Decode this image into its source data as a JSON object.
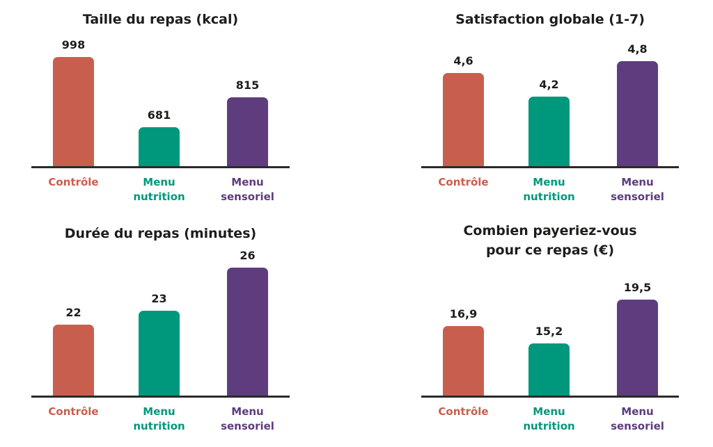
{
  "colors": {
    "controle": "#c85f4e",
    "nutrition": "#00987c",
    "sensoriel": "#5e3c7e"
  },
  "chart_data": [
    {
      "type": "bar",
      "title": "Taille du repas (kcal)",
      "categories": [
        "Contrôle",
        "Menu nutrition",
        "Menu sensoriel"
      ],
      "category_lines": [
        [
          "Contrôle"
        ],
        [
          "Menu",
          "nutrition"
        ],
        [
          "Menu",
          "sensoriel"
        ]
      ],
      "values": [
        998,
        681,
        815
      ],
      "value_labels": [
        "998",
        "681",
        "815"
      ],
      "xlabel": "",
      "ylabel": ""
    },
    {
      "type": "bar",
      "title": "Satisfaction globale (1-7)",
      "categories": [
        "Contrôle",
        "Menu nutrition",
        "Menu sensoriel"
      ],
      "category_lines": [
        [
          "Contrôle"
        ],
        [
          "Menu",
          "nutrition"
        ],
        [
          "Menu",
          "sensoriel"
        ]
      ],
      "values": [
        4.6,
        4.2,
        4.8
      ],
      "value_labels": [
        "4,6",
        "4,2",
        "4,8"
      ],
      "xlabel": "",
      "ylabel": ""
    },
    {
      "type": "bar",
      "title": "Durée du repas (minutes)",
      "categories": [
        "Contrôle",
        "Menu nutrition",
        "Menu sensoriel"
      ],
      "category_lines": [
        [
          "Contrôle"
        ],
        [
          "Menu",
          "nutrition"
        ],
        [
          "Menu",
          "sensoriel"
        ]
      ],
      "values": [
        22,
        23,
        26
      ],
      "value_labels": [
        "22",
        "23",
        "26"
      ],
      "xlabel": "",
      "ylabel": ""
    },
    {
      "type": "bar",
      "title": "Combien payeriez-vous pour ce repas (€)",
      "title_lines": [
        "Combien payeriez-vous",
        "pour ce repas (€)"
      ],
      "categories": [
        "Contrôle",
        "Menu nutrition",
        "Menu sensoriel"
      ],
      "category_lines": [
        [
          "Contrôle"
        ],
        [
          "Menu",
          "nutrition"
        ],
        [
          "Menu",
          "sensoriel"
        ]
      ],
      "values": [
        16.9,
        15.2,
        19.5
      ],
      "value_labels": [
        "16,9",
        "15,2",
        "19,5"
      ],
      "xlabel": "",
      "ylabel": ""
    }
  ]
}
